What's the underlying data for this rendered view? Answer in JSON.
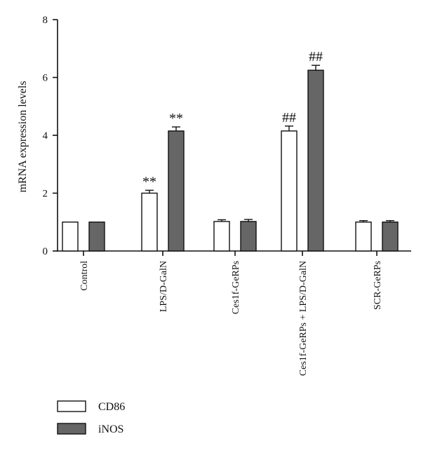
{
  "chart_data": {
    "type": "bar",
    "ylabel": "mRNA expression levels",
    "ylim": [
      0,
      8
    ],
    "yticks": [
      0,
      2,
      4,
      6,
      8
    ],
    "categories": [
      "Control",
      "LPS/D-GalN",
      "Ces1f-GeRPs",
      "Ces1f-GeRPs + LPS/D-GalN",
      "SCR-GeRPs"
    ],
    "series": [
      {
        "name": "CD86",
        "color": "#ffffff",
        "values": [
          1.0,
          2.0,
          1.02,
          4.15,
          1.0
        ],
        "errors": [
          0.0,
          0.1,
          0.06,
          0.17,
          0.05
        ],
        "annotations": [
          "",
          "**",
          "",
          "##",
          ""
        ]
      },
      {
        "name": "iNOS",
        "color": "#666666",
        "values": [
          1.0,
          4.15,
          1.02,
          6.25,
          1.0
        ],
        "errors": [
          0.0,
          0.14,
          0.07,
          0.17,
          0.05
        ],
        "annotations": [
          "",
          "**",
          "",
          "##",
          ""
        ]
      }
    ],
    "grid": false,
    "legend_position": "bottom-left"
  }
}
